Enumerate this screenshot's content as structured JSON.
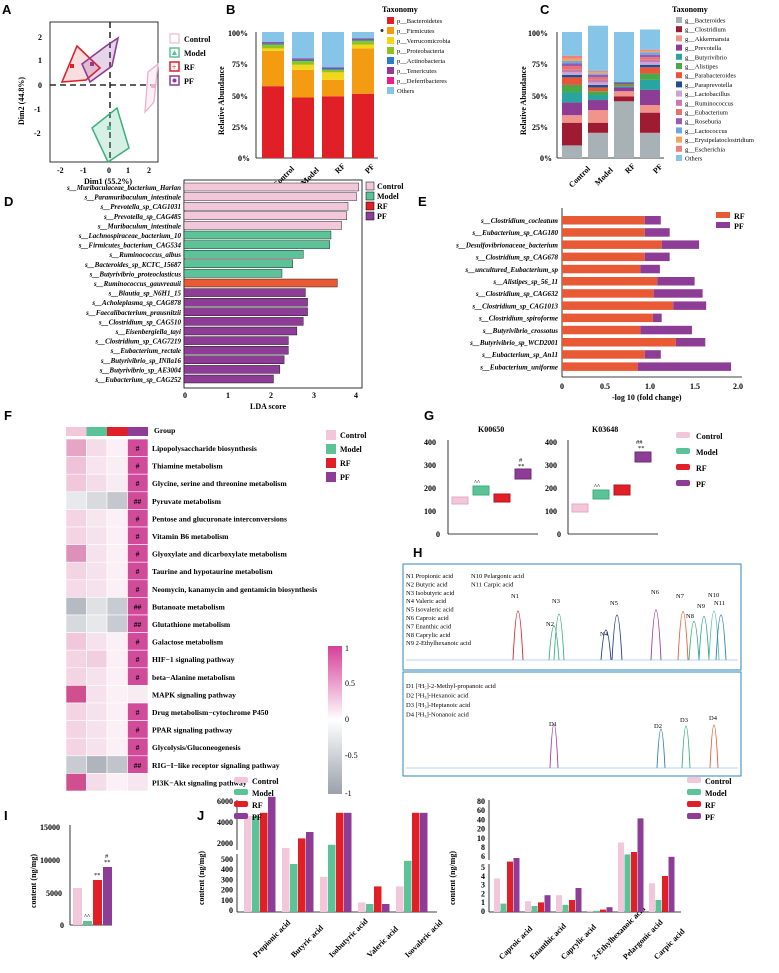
{
  "panel_letters": [
    "A",
    "B",
    "C",
    "D",
    "E",
    "F",
    "G",
    "H",
    "I",
    "J"
  ],
  "legend_groups": [
    "Control",
    "Model",
    "RF",
    "PF"
  ],
  "group_colors": {
    "Control": "#f2c7d9",
    "Model": "#5cc297",
    "RF": "#e01f26",
    "PF": "#8e3d96"
  },
  "panel_A": {
    "xlabel": "Dim1 (55.2%)",
    "ylabel": "Dim2 (44.8%)",
    "xticks": [
      "-2",
      "-1",
      "0",
      "1",
      "2"
    ],
    "yticks": [
      "2",
      "1",
      "0",
      "-1",
      "-2"
    ]
  },
  "panel_B": {
    "ylabel": "Relative Abundance",
    "legend_title": "Taxonomy",
    "taxa": [
      "p__Bacteroidetes",
      "p__Firmicutes",
      "p__Verrucomicrobia",
      "p__Proteobacteria",
      "p__Actinobacteria",
      "p__Tenericutes",
      "p__Deferribacteres",
      "Others"
    ],
    "colors": [
      "#e01f26",
      "#f39c12",
      "#f1d61a",
      "#8fc31f",
      "#2b7ec1",
      "#8e3d96",
      "#e91e8c",
      "#86c5e8"
    ],
    "yticks": [
      "100%",
      "75%",
      "50%",
      "25%",
      "0%"
    ],
    "categories": [
      "Control",
      "Model",
      "RF",
      "PF"
    ]
  },
  "panel_C": {
    "ylabel": "Relative Abundance",
    "legend_title": "Taxonomy",
    "taxa": [
      "g__Bacteroides",
      "g__Clostridium",
      "g__Akkermansia",
      "g__Prevotella",
      "g__Butyrivibrio",
      "g__Alistipes",
      "g__Parabacteroides",
      "g__Paraprevotella",
      "g__Lactobacillus",
      "g__Ruminococcus",
      "g__Eubacterium",
      "g__Roseburia",
      "g__Lactococcus",
      "g__Erysipelatoclostridium",
      "g__Escherichia",
      "Others"
    ],
    "colors": [
      "#a8b1b5",
      "#9e1b32",
      "#f0948c",
      "#8e3d96",
      "#2aa4a0",
      "#4aa84a",
      "#e8553a",
      "#1f4f8f",
      "#c8a5d6",
      "#c97bb0",
      "#e57373",
      "#9b59b6",
      "#6fa8dc",
      "#f1a45c",
      "#f08080",
      "#86c5e8"
    ],
    "yticks": [
      "100%",
      "75%",
      "50%",
      "25%",
      "0%"
    ],
    "categories": [
      "Control",
      "Model",
      "RF",
      "PF"
    ]
  },
  "panel_D": {
    "xlabel": "LDA score",
    "xticks": [
      "0",
      "1",
      "2",
      "3",
      "4"
    ],
    "taxa": [
      "s__Muribaculaceae_bacterium_Harlan",
      "s__Paramuribaculum_intestinale",
      "s__Prevotella_sp_CAG1031",
      "s__Prevotella_sp_CAG485",
      "s__Muribaculum_intestinale",
      "s__Lachnospiraceae_bacterium_10",
      "s__Firmicutes_bacterium_CAG534",
      "s__Ruminococcus_albus",
      "s__Bacteroides_sp_KCTC_15687",
      "s__Butyrivibrio_proteoclasticus",
      "s__Ruminococcus_gauvreauii",
      "s__Blautia_sp_N6H1_15",
      "s__Acholeplasma_sp_CAG878",
      "s__Faecalibacterium_prausnitzii",
      "s__Clostridium_sp_CAG510",
      "s__Eisenbergiella_tayi",
      "s__Clostridium_sp_CAG7219",
      "s__Eubacterium_rectale",
      "s__Butyrivibrio_sp_INlla16",
      "s__Butyrivibrio_sp_AE3004",
      "s__Eubacterium_sp_CAG252"
    ]
  },
  "panel_E": {
    "xlabel": "-log 10 (fold change)",
    "xticks": [
      "0",
      "0.5",
      "1.0",
      "1.5",
      "2.0"
    ],
    "legend": [
      "RF",
      "PF"
    ],
    "taxa": [
      "s__Clostridium_cocleatum",
      "s__Eubacterium_sp_CAG180",
      "s__Desulfovibrionaceae_bacterium",
      "s__Clostridium_sp_CAG678",
      "s__uncultured_Eubacterium_sp",
      "s__Alistipes_sp_56_11",
      "s__Clostridium_sp_CAG632",
      "s__Clostridium_sp_CAG1013",
      "s__Clostridium_spiroforme",
      "s__Butyrivibrio_crossotus",
      "s__Butyrivibrio_sp_WCD2001",
      "s__Eubacterium_sp_An11",
      "s__Eubacterium_uniforme"
    ]
  },
  "panel_F": {
    "group_label": "Group",
    "colorbar_ticks": [
      "1",
      "0.5",
      "0",
      "-0.5",
      "-1"
    ],
    "pathways": [
      {
        "name": "Lipopolysaccharide biosynthesis",
        "mark": "#"
      },
      {
        "name": "Thiamine metabolism",
        "mark": "#"
      },
      {
        "name": "Glycine, serine and threonine metabolism",
        "mark": "#"
      },
      {
        "name": "Pyruvate metabolism",
        "mark": "##"
      },
      {
        "name": "Pentose and glucuronate interconversions",
        "mark": "#"
      },
      {
        "name": "Vitamin B6 metabolism",
        "mark": "#"
      },
      {
        "name": "Glyoxylate and dicarboxylate metabolism",
        "mark": "#"
      },
      {
        "name": "Taurine and hypotaurine metabolism",
        "mark": "#"
      },
      {
        "name": "Neomycin, kanamycin and gentamicin biosynthesis",
        "mark": "#"
      },
      {
        "name": "Butanoate metabolism",
        "mark": "##"
      },
      {
        "name": "Glutathione metabolism",
        "mark": "##"
      },
      {
        "name": "Galactose metabolism",
        "mark": "#"
      },
      {
        "name": "HIF−1 signaling pathway",
        "mark": "#"
      },
      {
        "name": "beta−Alanine metabolism",
        "mark": "#"
      },
      {
        "name": "MAPK signaling pathway",
        "mark": ""
      },
      {
        "name": "Drug metabolism−cytochrome P450",
        "mark": "#"
      },
      {
        "name": "PPAR signaling pathway",
        "mark": "#"
      },
      {
        "name": "Glycolysis/Gluconeogenesis",
        "mark": "#"
      },
      {
        "name": "RIG−I−like receptor signaling pathway",
        "mark": "##"
      },
      {
        "name": "PI3K−Akt signaling pathway",
        "mark": ""
      }
    ]
  },
  "panel_G": {
    "titles": [
      "K00650",
      "K03648"
    ],
    "yticks": [
      "400",
      "300",
      "200",
      "100",
      "0"
    ]
  },
  "panel_H": {
    "top_legend": [
      "N1 Propionic acid",
      "N2 Butyric acid",
      "N3 Isobutyric acid",
      "N4 Valeric acid",
      "N5 Isovaleric acid",
      "N6 Caproic acid",
      "N7 Enanthic acid",
      "N8 Caprylic acid",
      "N9 2-Ethylhexanoic acid"
    ],
    "top_legend2": [
      "N10 Pelargonic acid",
      "N11 Carpic acid"
    ],
    "peaks_top": [
      "N1",
      "N2",
      "N3",
      "N4",
      "N5",
      "N6",
      "N7",
      "N8",
      "N9",
      "N10",
      "N11"
    ],
    "bottom_legend": [
      "D1 [²H₅]-2-Methyl-propanoic acid",
      "D2 [²H₃]-Hexanoic acid",
      "D3 [²H₃]-Heptanoic acid",
      "D4 [²H₃]-Nonanoic acid"
    ],
    "peaks_bottom": [
      "D1",
      "D2",
      "D3",
      "D4"
    ]
  },
  "panel_I": {
    "ylabel": "content (ng/mg)",
    "yticks": [
      "15000",
      "10000",
      "5000",
      "0"
    ],
    "annotations": {
      "model": "^^",
      "rf": "**",
      "pf_hash": "#",
      "pf_star": "**"
    }
  },
  "panel_J": {
    "ylabel": "content (ng/mg)",
    "left_acids": [
      "Propionic acid",
      "Butyric acid",
      "Isobutyric acid",
      "Valeric acid",
      "Isovaleric acid"
    ],
    "right_acids": [
      "Caproic acid",
      "Enanthic acid",
      "Caprylic acid",
      "2-Ethylhexanoic acid",
      "Pelargonic acid",
      "Carpic acid"
    ],
    "left_yticks_top": [
      "6000",
      "4000",
      "2000"
    ],
    "left_yticks_bottom": [
      "500",
      "400",
      "300",
      "200",
      "100",
      "0"
    ],
    "right_yticks_top": [
      "80",
      "60",
      "40",
      "20",
      "10",
      "8",
      "6"
    ],
    "right_yticks_bottom": [
      "5",
      "4",
      "3",
      "2",
      "1",
      "0"
    ]
  }
}
